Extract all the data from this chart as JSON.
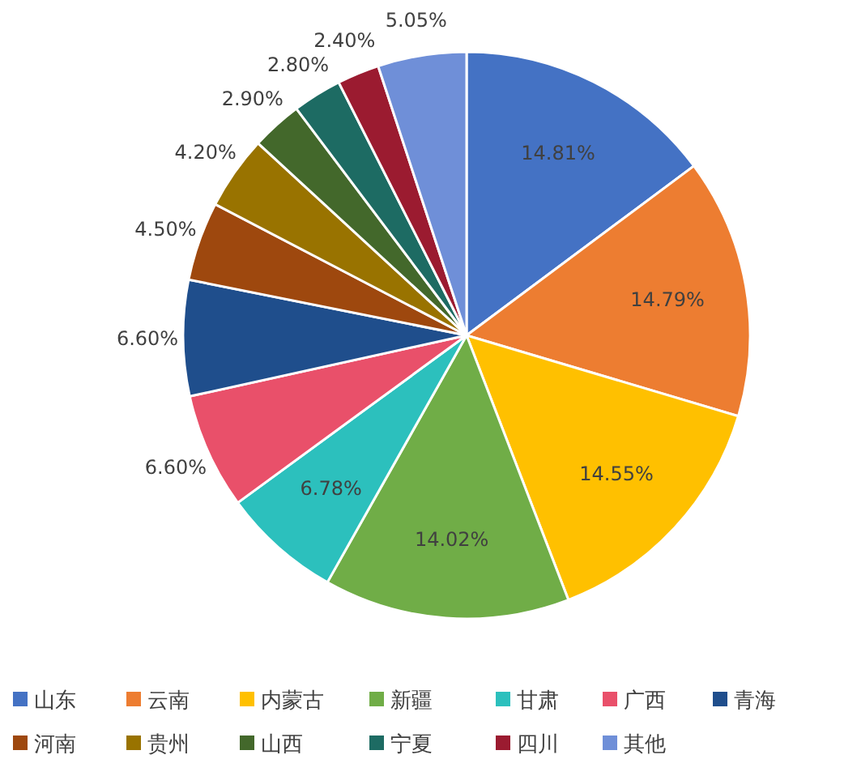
{
  "chart_data": {
    "type": "pie",
    "categories": [
      "山东",
      "云南",
      "内蒙古",
      "新疆",
      "甘肃",
      "广西",
      "青海",
      "河南",
      "贵州",
      "山西",
      "宁夏",
      "四川",
      "其他"
    ],
    "values": [
      14.81,
      14.79,
      14.55,
      14.02,
      6.78,
      6.6,
      6.6,
      4.5,
      4.2,
      2.9,
      2.8,
      2.4,
      5.05
    ],
    "value_labels": [
      "14.81%",
      "14.79%",
      "14.55%",
      "14.02%",
      "6.78%",
      "6.60%",
      "6.60%",
      "4.50%",
      "4.20%",
      "2.90%",
      "2.80%",
      "2.40%",
      "5.05%"
    ],
    "colors": [
      "#4472c4",
      "#ed7d31",
      "#ffc000",
      "#70ad47",
      "#2cc0bd",
      "#e9506a",
      "#1f4e8c",
      "#9e480e",
      "#997300",
      "#43682b",
      "#1d6b63",
      "#9b1b30",
      "#6f8fd8"
    ],
    "legend": "bottom"
  }
}
